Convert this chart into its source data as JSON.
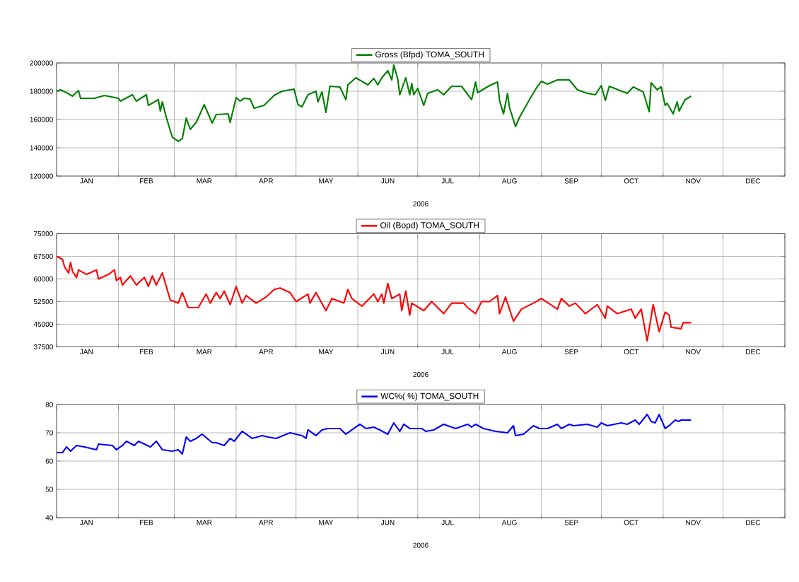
{
  "chart_data": [
    {
      "type": "line",
      "xlabel": "2006",
      "grid": true,
      "legend": "top",
      "line_style": "solid",
      "xlim": [
        "2006-01-01",
        "2007-01-01"
      ],
      "xticks": [
        {
          "value": "2006-01-01",
          "label": null
        },
        {
          "value": "2006-01-16",
          "label": "JAN"
        },
        {
          "value": "2006-02-01",
          "label": null
        },
        {
          "value": "2006-02-15",
          "label": "FEB"
        },
        {
          "value": "2006-03-01",
          "label": null
        },
        {
          "value": "2006-03-16",
          "label": "MAR"
        },
        {
          "value": "2006-04-01",
          "label": null
        },
        {
          "value": "2006-04-16",
          "label": "APR"
        },
        {
          "value": "2006-05-01",
          "label": null
        },
        {
          "value": "2006-05-16",
          "label": "MAY"
        },
        {
          "value": "2006-06-01",
          "label": null
        },
        {
          "value": "2006-06-16",
          "label": "JUN"
        },
        {
          "value": "2006-07-01",
          "label": null
        },
        {
          "value": "2006-07-16",
          "label": "JUL"
        },
        {
          "value": "2006-08-01",
          "label": null
        },
        {
          "value": "2006-08-16",
          "label": "AUG"
        },
        {
          "value": "2006-09-01",
          "label": null
        },
        {
          "value": "2006-09-16",
          "label": "SEP"
        },
        {
          "value": "2006-10-01",
          "label": null
        },
        {
          "value": "2006-10-16",
          "label": "OCT"
        },
        {
          "value": "2006-11-01",
          "label": null
        },
        {
          "value": "2006-11-16",
          "label": "NOV"
        },
        {
          "value": "2006-12-01",
          "label": null
        },
        {
          "value": "2006-12-16",
          "label": "DEC"
        },
        {
          "value": "2007-01-01",
          "label": null
        }
      ],
      "ylim": [
        120000,
        200000
      ],
      "yticks": [
        120000,
        140000,
        160000,
        180000,
        200000
      ],
      "x": [
        "2006-01-01",
        "2006-01-03",
        "2006-01-06",
        "2006-01-09",
        "2006-01-12",
        "2006-01-13",
        "2006-01-20",
        "2006-01-25",
        "2006-02-01",
        "2006-02-02",
        "2006-02-08",
        "2006-02-10",
        "2006-02-15",
        "2006-02-16",
        "2006-02-21",
        "2006-02-22",
        "2006-02-23",
        "2006-02-25",
        "2006-02-28",
        "2006-03-03",
        "2006-03-05",
        "2006-03-07",
        "2006-03-09",
        "2006-03-12",
        "2006-03-16",
        "2006-03-20",
        "2006-03-22",
        "2006-03-28",
        "2006-03-29",
        "2006-04-01",
        "2006-04-03",
        "2006-04-05",
        "2006-04-08",
        "2006-04-10",
        "2006-04-15",
        "2006-04-20",
        "2006-04-24",
        "2006-04-30",
        "2006-05-02",
        "2006-05-04",
        "2006-05-07",
        "2006-05-11",
        "2006-05-12",
        "2006-05-14",
        "2006-05-16",
        "2006-05-18",
        "2006-05-23",
        "2006-05-26",
        "2006-05-27",
        "2006-05-31",
        "2006-06-06",
        "2006-06-09",
        "2006-06-11",
        "2006-06-13",
        "2006-06-16",
        "2006-06-18",
        "2006-06-19",
        "2006-06-21",
        "2006-06-22",
        "2006-06-25",
        "2006-06-27",
        "2006-06-28",
        "2006-06-29",
        "2006-07-01",
        "2006-07-04",
        "2006-07-06",
        "2006-07-11",
        "2006-07-14",
        "2006-07-18",
        "2006-07-23",
        "2006-07-28",
        "2006-07-30",
        "2006-07-31",
        "2006-08-06",
        "2006-08-10",
        "2006-08-11",
        "2006-08-13",
        "2006-08-15",
        "2006-08-16",
        "2006-08-19",
        "2006-08-21",
        "2006-08-23",
        "2006-08-26",
        "2006-08-30",
        "2006-09-01",
        "2006-09-04",
        "2006-09-09",
        "2006-09-15",
        "2006-09-19",
        "2006-09-24",
        "2006-09-28",
        "2006-10-01",
        "2006-10-03",
        "2006-10-05",
        "2006-10-14",
        "2006-10-17",
        "2006-10-22",
        "2006-10-25",
        "2006-10-26",
        "2006-10-29",
        "2006-10-31",
        "2006-11-02",
        "2006-11-03",
        "2006-11-06",
        "2006-11-08",
        "2006-11-09",
        "2006-11-12",
        "2006-11-15"
      ],
      "series": [
        {
          "name": "Gross (Bfpd) TOMA_SOUTH",
          "color": "#008000",
          "values": [
            180000,
            181000,
            179000,
            176500,
            180500,
            175000,
            175000,
            177000,
            175000,
            173000,
            177500,
            173000,
            177500,
            170000,
            174000,
            166000,
            172500,
            161500,
            147500,
            144500,
            146500,
            161000,
            153000,
            158000,
            170500,
            157500,
            163500,
            164000,
            158000,
            175500,
            173000,
            175000,
            174500,
            168000,
            170000,
            177000,
            180000,
            181500,
            170500,
            169000,
            177500,
            180000,
            172500,
            179500,
            165000,
            183500,
            183000,
            174000,
            184500,
            189500,
            184500,
            189000,
            184500,
            189500,
            194500,
            188000,
            198500,
            188500,
            177500,
            189500,
            177500,
            185500,
            177500,
            182000,
            170000,
            178500,
            181000,
            177500,
            183500,
            183500,
            174000,
            186500,
            179000,
            184000,
            186500,
            173500,
            164000,
            178500,
            168500,
            155000,
            161500,
            166500,
            174000,
            183500,
            187000,
            185000,
            188000,
            188000,
            181000,
            178500,
            177500,
            184000,
            173500,
            183500,
            178500,
            183000,
            179500,
            165500,
            186000,
            181000,
            183000,
            170000,
            171500,
            164000,
            172500,
            166000,
            174000,
            176500
          ]
        }
      ]
    },
    {
      "type": "line",
      "xlabel": "2006",
      "grid": true,
      "legend": "top",
      "line_style": "solid",
      "xlim": [
        "2006-01-01",
        "2007-01-01"
      ],
      "xticks": [
        {
          "value": "2006-01-01",
          "label": null
        },
        {
          "value": "2006-01-16",
          "label": "JAN"
        },
        {
          "value": "2006-02-01",
          "label": null
        },
        {
          "value": "2006-02-15",
          "label": "FEB"
        },
        {
          "value": "2006-03-01",
          "label": null
        },
        {
          "value": "2006-03-16",
          "label": "MAR"
        },
        {
          "value": "2006-04-01",
          "label": null
        },
        {
          "value": "2006-04-16",
          "label": "APR"
        },
        {
          "value": "2006-05-01",
          "label": null
        },
        {
          "value": "2006-05-16",
          "label": "MAY"
        },
        {
          "value": "2006-06-01",
          "label": null
        },
        {
          "value": "2006-06-16",
          "label": "JUN"
        },
        {
          "value": "2006-07-01",
          "label": null
        },
        {
          "value": "2006-07-16",
          "label": "JUL"
        },
        {
          "value": "2006-08-01",
          "label": null
        },
        {
          "value": "2006-08-16",
          "label": "AUG"
        },
        {
          "value": "2006-09-01",
          "label": null
        },
        {
          "value": "2006-09-16",
          "label": "SEP"
        },
        {
          "value": "2006-10-01",
          "label": null
        },
        {
          "value": "2006-10-16",
          "label": "OCT"
        },
        {
          "value": "2006-11-01",
          "label": null
        },
        {
          "value": "2006-11-16",
          "label": "NOV"
        },
        {
          "value": "2006-12-01",
          "label": null
        },
        {
          "value": "2006-12-16",
          "label": "DEC"
        },
        {
          "value": "2007-01-01",
          "label": null
        }
      ],
      "ylim": [
        37500,
        75000
      ],
      "yticks": [
        37500,
        45000,
        52500,
        60000,
        67500,
        75000
      ],
      "x": [
        "2006-01-01",
        "2006-01-04",
        "2006-01-05",
        "2006-01-07",
        "2006-01-08",
        "2006-01-09",
        "2006-01-11",
        "2006-01-12",
        "2006-01-16",
        "2006-01-21",
        "2006-01-22",
        "2006-01-27",
        "2006-01-30",
        "2006-01-31",
        "2006-02-02",
        "2006-02-03",
        "2006-02-07",
        "2006-02-10",
        "2006-02-14",
        "2006-02-16",
        "2006-02-18",
        "2006-02-20",
        "2006-02-23",
        "2006-02-27",
        "2006-03-03",
        "2006-03-05",
        "2006-03-08",
        "2006-03-13",
        "2006-03-17",
        "2006-03-19",
        "2006-03-22",
        "2006-03-24",
        "2006-03-26",
        "2006-03-29",
        "2006-04-01",
        "2006-04-04",
        "2006-04-06",
        "2006-04-11",
        "2006-04-16",
        "2006-04-20",
        "2006-04-23",
        "2006-04-28",
        "2006-05-01",
        "2006-05-07",
        "2006-05-08",
        "2006-05-11",
        "2006-05-16",
        "2006-05-19",
        "2006-05-25",
        "2006-05-27",
        "2006-05-29",
        "2006-06-03",
        "2006-06-09",
        "2006-06-11",
        "2006-06-13",
        "2006-06-14",
        "2006-06-16",
        "2006-06-18",
        "2006-06-22",
        "2006-06-23",
        "2006-06-25",
        "2006-06-27",
        "2006-06-28",
        "2006-07-04",
        "2006-07-08",
        "2006-07-14",
        "2006-07-18",
        "2006-07-24",
        "2006-07-26",
        "2006-07-30",
        "2006-08-02",
        "2006-08-06",
        "2006-08-10",
        "2006-08-11",
        "2006-08-14",
        "2006-08-18",
        "2006-08-22",
        "2006-08-28",
        "2006-09-01",
        "2006-09-09",
        "2006-09-11",
        "2006-09-15",
        "2006-09-18",
        "2006-09-23",
        "2006-09-29",
        "2006-10-03",
        "2006-10-04",
        "2006-10-09",
        "2006-10-16",
        "2006-10-18",
        "2006-10-21",
        "2006-10-24",
        "2006-10-27",
        "2006-10-30",
        "2006-11-02",
        "2006-11-04",
        "2006-11-05",
        "2006-11-10",
        "2006-11-11",
        "2006-11-15"
      ],
      "series": [
        {
          "name": "Oil (Bopd) TOMA_SOUTH",
          "color": "#ff0000",
          "values": [
            67500,
            66500,
            64000,
            62000,
            65500,
            62500,
            60500,
            63000,
            61500,
            63000,
            60000,
            61500,
            63000,
            59500,
            60500,
            58000,
            61000,
            58000,
            60500,
            57500,
            61000,
            58000,
            62000,
            53000,
            52000,
            55500,
            50500,
            50500,
            55000,
            52000,
            55500,
            53500,
            56000,
            51500,
            57500,
            52000,
            54500,
            52000,
            54000,
            56500,
            57000,
            55500,
            52500,
            55000,
            52000,
            55500,
            49500,
            53500,
            52000,
            56500,
            53500,
            51000,
            55000,
            52500,
            55000,
            52000,
            58500,
            53500,
            55000,
            49500,
            56000,
            48000,
            52000,
            49500,
            52500,
            48500,
            52000,
            52000,
            50500,
            48500,
            52500,
            52500,
            54500,
            48500,
            54000,
            46000,
            50000,
            52000,
            53500,
            50000,
            53500,
            51000,
            52000,
            48500,
            51500,
            47000,
            51000,
            48500,
            50000,
            47000,
            50000,
            39500,
            51500,
            42500,
            49000,
            48000,
            44000,
            43500,
            45500,
            45500
          ]
        }
      ]
    },
    {
      "type": "line",
      "xlabel": "2006",
      "grid": true,
      "legend": "top",
      "line_style": "solid",
      "xlim": [
        "2006-01-01",
        "2007-01-01"
      ],
      "xticks": [
        {
          "value": "2006-01-01",
          "label": null
        },
        {
          "value": "2006-01-16",
          "label": "JAN"
        },
        {
          "value": "2006-02-01",
          "label": null
        },
        {
          "value": "2006-02-15",
          "label": "FEB"
        },
        {
          "value": "2006-03-01",
          "label": null
        },
        {
          "value": "2006-03-16",
          "label": "MAR"
        },
        {
          "value": "2006-04-01",
          "label": null
        },
        {
          "value": "2006-04-16",
          "label": "APR"
        },
        {
          "value": "2006-05-01",
          "label": null
        },
        {
          "value": "2006-05-16",
          "label": "MAY"
        },
        {
          "value": "2006-06-01",
          "label": null
        },
        {
          "value": "2006-06-16",
          "label": "JUN"
        },
        {
          "value": "2006-07-01",
          "label": null
        },
        {
          "value": "2006-07-16",
          "label": "JUL"
        },
        {
          "value": "2006-08-01",
          "label": null
        },
        {
          "value": "2006-08-16",
          "label": "AUG"
        },
        {
          "value": "2006-09-01",
          "label": null
        },
        {
          "value": "2006-09-16",
          "label": "SEP"
        },
        {
          "value": "2006-10-01",
          "label": null
        },
        {
          "value": "2006-10-16",
          "label": "OCT"
        },
        {
          "value": "2006-11-01",
          "label": null
        },
        {
          "value": "2006-11-16",
          "label": "NOV"
        },
        {
          "value": "2006-12-01",
          "label": null
        },
        {
          "value": "2006-12-16",
          "label": "DEC"
        },
        {
          "value": "2007-01-01",
          "label": null
        }
      ],
      "ylim": [
        40,
        80
      ],
      "yticks": [
        40,
        50,
        60,
        70,
        80
      ],
      "x": [
        "2006-01-01",
        "2006-01-04",
        "2006-01-06",
        "2006-01-08",
        "2006-01-11",
        "2006-01-15",
        "2006-01-21",
        "2006-01-22",
        "2006-01-29",
        "2006-01-31",
        "2006-02-03",
        "2006-02-05",
        "2006-02-09",
        "2006-02-11",
        "2006-02-17",
        "2006-02-20",
        "2006-02-23",
        "2006-02-28",
        "2006-03-03",
        "2006-03-05",
        "2006-03-07",
        "2006-03-09",
        "2006-03-12",
        "2006-03-15",
        "2006-03-20",
        "2006-03-22",
        "2006-03-26",
        "2006-03-29",
        "2006-03-31",
        "2006-04-04",
        "2006-04-09",
        "2006-04-14",
        "2006-04-17",
        "2006-04-21",
        "2006-04-28",
        "2006-05-04",
        "2006-05-06",
        "2006-05-07",
        "2006-05-11",
        "2006-05-14",
        "2006-05-17",
        "2006-05-23",
        "2006-05-26",
        "2006-05-30",
        "2006-06-02",
        "2006-06-05",
        "2006-06-09",
        "2006-06-12",
        "2006-06-16",
        "2006-06-19",
        "2006-06-22",
        "2006-06-24",
        "2006-06-27",
        "2006-07-03",
        "2006-07-05",
        "2006-07-09",
        "2006-07-14",
        "2006-07-20",
        "2006-07-26",
        "2006-07-28",
        "2006-07-30",
        "2006-08-03",
        "2006-08-09",
        "2006-08-15",
        "2006-08-18",
        "2006-08-19",
        "2006-08-23",
        "2006-08-28",
        "2006-08-31",
        "2006-09-04",
        "2006-09-09",
        "2006-09-11",
        "2006-09-15",
        "2006-09-17",
        "2006-09-24",
        "2006-09-29",
        "2006-10-01",
        "2006-10-04",
        "2006-10-11",
        "2006-10-14",
        "2006-10-18",
        "2006-10-20",
        "2006-10-24",
        "2006-10-26",
        "2006-10-28",
        "2006-10-30",
        "2006-11-02",
        "2006-11-04",
        "2006-11-07",
        "2006-11-09",
        "2006-11-10",
        "2006-11-15"
      ],
      "series": [
        {
          "name": "WC%( %) TOMA_SOUTH",
          "color": "#0000ff",
          "values": [
            63,
            63,
            65,
            63.5,
            65.5,
            65,
            64,
            66,
            65.5,
            64,
            65.5,
            67,
            65.5,
            67,
            65,
            67,
            64,
            63.5,
            64,
            62.5,
            68.5,
            67,
            68,
            69.5,
            66.5,
            66.5,
            65.5,
            68,
            67,
            70.5,
            68,
            69,
            68.5,
            68,
            70,
            69,
            68,
            71,
            69,
            71,
            71.5,
            71.5,
            69.5,
            71.5,
            73,
            71.5,
            72,
            71,
            69.5,
            73.5,
            70.5,
            73,
            71.5,
            71.5,
            70.5,
            71,
            73,
            71.5,
            73,
            72,
            73,
            71.5,
            70.5,
            70,
            72.5,
            69,
            69.5,
            72.5,
            71.5,
            71.5,
            73,
            71.5,
            73,
            72.5,
            73,
            72,
            73.5,
            72.5,
            73.5,
            73,
            74.5,
            73,
            76.5,
            74,
            73.5,
            76.5,
            71.5,
            72.5,
            74.5,
            74,
            74.5,
            74.5
          ]
        }
      ]
    }
  ]
}
